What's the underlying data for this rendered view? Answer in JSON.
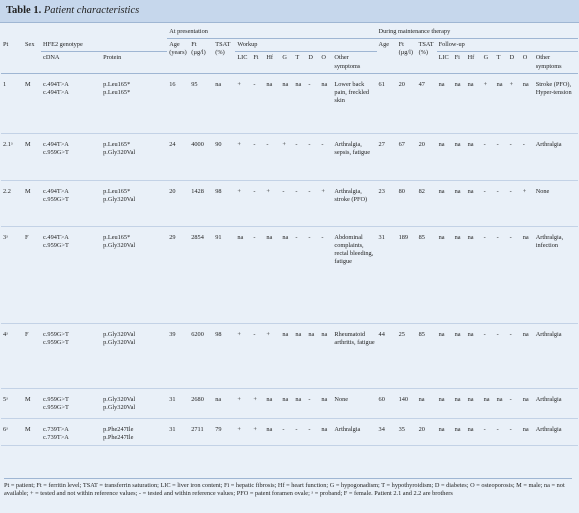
{
  "header": {
    "label": "Table 1.",
    "title": "Patient characteristics"
  },
  "table": {
    "header_top": [
      "At presentation",
      "During maintenance therapy"
    ],
    "header_mid": [
      "Pt",
      "Sex",
      "HFE2 genotype",
      "Age (years)",
      "Ft (µg/l)",
      "TSAT (%)",
      "Workup",
      "Age",
      "Ft (µg/l)",
      "TSAT (%)",
      "Follow-up"
    ],
    "header_sub": [
      "cDNA",
      "Protein",
      "LIC",
      "Fi",
      "Hf",
      "G",
      "T",
      "D",
      "O",
      "Other symptoms",
      "LIC",
      "Fi",
      "Hf",
      "G",
      "T",
      "D",
      "O",
      "Other symptoms"
    ],
    "rows": [
      [
        "1",
        "M",
        [
          "c.494T>A",
          "c.494T>A"
        ],
        [
          "p.Leu165*",
          "p.Leu165*"
        ],
        "16",
        "95",
        "na",
        "+",
        "-",
        "na",
        "na",
        "na",
        "-",
        "na",
        "Lower back pain, freckled skin",
        "61",
        "20",
        "47",
        "na",
        "na",
        "na",
        "+",
        "na",
        "+",
        "na",
        "Stroke (PFO), Hyper-tension"
      ],
      [
        "2.1ᵃ",
        "M",
        [
          "c.494T>A",
          "c.959G>T"
        ],
        [
          "p.Leu165*",
          "p.Gly320Val"
        ],
        "24",
        "4000",
        "90",
        "+",
        "-",
        "-",
        "+",
        "-",
        "-",
        "-",
        "Arthralgia, sepsis, fatigue",
        "27",
        "67",
        "20",
        "na",
        "na",
        "na",
        "-",
        "-",
        "-",
        "-",
        "Arthralgia"
      ],
      [
        "2.2",
        "M",
        [
          "c.494T>A",
          "c.959G>T"
        ],
        [
          "p.Leu165*",
          "p.Gly320Val"
        ],
        "20",
        "1428",
        "98",
        "+",
        "-",
        "+",
        "-",
        "-",
        "-",
        "+",
        "Arthralgia, stroke (PFO)",
        "23",
        "80",
        "82",
        "na",
        "na",
        "na",
        "-",
        "-",
        "-",
        "+",
        "None"
      ],
      [
        "3ᵃ",
        "F",
        [
          "c.494T>A",
          "c.959G>T"
        ],
        [
          "p.Leu165*",
          "p.Gly320Val"
        ],
        "29",
        "2854",
        "91",
        "na",
        "-",
        "na",
        "na",
        "-",
        "-",
        "-",
        "Abdominal complaints, rectal bleeding, fatigue",
        "31",
        "189",
        "85",
        "na",
        "na",
        "na",
        "-",
        "-",
        "-",
        "na",
        "Arthralgia, infection"
      ],
      [
        "4ᵃ",
        "F",
        [
          "c.959G>T",
          "c.959G>T"
        ],
        [
          "p.Gly320Val",
          "p.Gly320Val"
        ],
        "39",
        "6200",
        "98",
        "+",
        "-",
        "+",
        "na",
        "na",
        "na",
        "na",
        "Rheumatoid arthritis, fatigue",
        "44",
        "25",
        "85",
        "na",
        "na",
        "na",
        "-",
        "-",
        "-",
        "na",
        "Arthralgia"
      ],
      [
        "5ᵃ",
        "M",
        [
          "c.959G>T",
          "c.959G>T"
        ],
        [
          "p.Gly320Val",
          "p.Gly320Val"
        ],
        "31",
        "2680",
        "na",
        "+",
        "+",
        "na",
        "na",
        "na",
        "-",
        "na",
        "None",
        "60",
        "140",
        "na",
        "na",
        "na",
        "na",
        "na",
        "na",
        "-",
        "na",
        "Arthralgia"
      ],
      [
        "6ᵃ",
        "M",
        [
          "c.739T>A",
          "c.739T>A"
        ],
        [
          "p.Phe247Ile",
          "p.Phe247Ile"
        ],
        "31",
        "2711",
        "79",
        "+",
        "+",
        "na",
        "-",
        "-",
        "-",
        "na",
        "Arthralgia",
        "34",
        "35",
        "20",
        "na",
        "na",
        "na",
        "-",
        "-",
        "-",
        "na",
        "Arthralgia"
      ]
    ]
  },
  "footnote": "Pt = patient; Ft = ferritin level; TSAT = transferrin saturation; LIC = liver iron content; Fi = hepatic fibrosis; Hf = heart function; G = hypogonadism; T = hypothyroidism; D = diabetes; O = osteoporosis; M = male; na = not available; + = tested and not within reference values; - = tested and within reference values; PFO = patent foramen ovale; ᵃ = proband; F = female. Patient 2.1 and 2.2 are brothers"
}
